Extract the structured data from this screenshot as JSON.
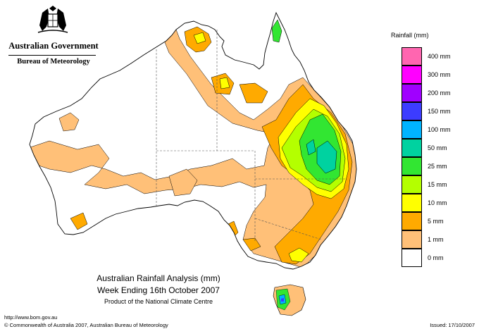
{
  "logo": {
    "government": "Australian Government",
    "bureau": "Bureau of Meteorology"
  },
  "legend": {
    "title": "Rainfall (mm)",
    "items": [
      {
        "label": "400 mm",
        "color": "#ff66b0"
      },
      {
        "label": "300 mm",
        "color": "#ff00ff"
      },
      {
        "label": "200 mm",
        "color": "#a000ff"
      },
      {
        "label": "150 mm",
        "color": "#3c3cff"
      },
      {
        "label": "100 mm",
        "color": "#00b4ff"
      },
      {
        "label": "50 mm",
        "color": "#00d2a0"
      },
      {
        "label": "25 mm",
        "color": "#32e632"
      },
      {
        "label": "15 mm",
        "color": "#b4ff00"
      },
      {
        "label": "10 mm",
        "color": "#ffff00"
      },
      {
        "label": "5 mm",
        "color": "#ffaa00"
      },
      {
        "label": "1 mm",
        "color": "#ffc078"
      },
      {
        "label": "0 mm",
        "color": "#ffffff"
      }
    ]
  },
  "caption": {
    "line1": "Australian Rainfall Analysis (mm)",
    "line2": "Week Ending 16th October 2007",
    "line3": "Product of the National Climate Centre"
  },
  "footer": {
    "url": "http://www.bom.gov.au",
    "copyright": "© Commonwealth of Australia 2007, Australian Bureau of Meteorology",
    "issued": "Issued: 17/10/2007"
  },
  "map": {
    "colors": {
      "outline": "#000000",
      "border": "#555555"
    }
  }
}
